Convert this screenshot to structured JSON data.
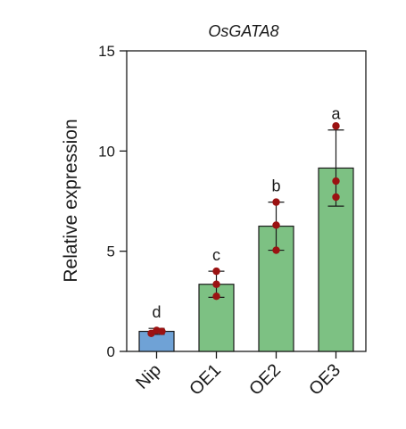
{
  "chart_data": {
    "type": "bar",
    "title": "OsGATA8",
    "ylabel": "Relative expression",
    "xlabel": "",
    "ylim": [
      0,
      15
    ],
    "yticks": [
      "0",
      "5",
      "10",
      "15"
    ],
    "categories": [
      "Nip",
      "OE1",
      "OE2",
      "OE3"
    ],
    "values": [
      1.0,
      3.35,
      6.25,
      9.15
    ],
    "error_upper": [
      1.15,
      4.0,
      7.45,
      11.05
    ],
    "error_lower": [
      0.85,
      2.7,
      5.05,
      7.25
    ],
    "points": [
      [
        0.9,
        1.05,
        1.0
      ],
      [
        2.75,
        3.35,
        4.0
      ],
      [
        5.05,
        6.3,
        7.45
      ],
      [
        7.7,
        8.5,
        11.25
      ]
    ],
    "significance": [
      "d",
      "c",
      "b",
      "a"
    ],
    "bar_colors": [
      "#6fa2d6",
      "#7dc183",
      "#7dc183",
      "#7dc183"
    ],
    "point_color": "#9b1212",
    "grid": false,
    "legend": "none"
  }
}
